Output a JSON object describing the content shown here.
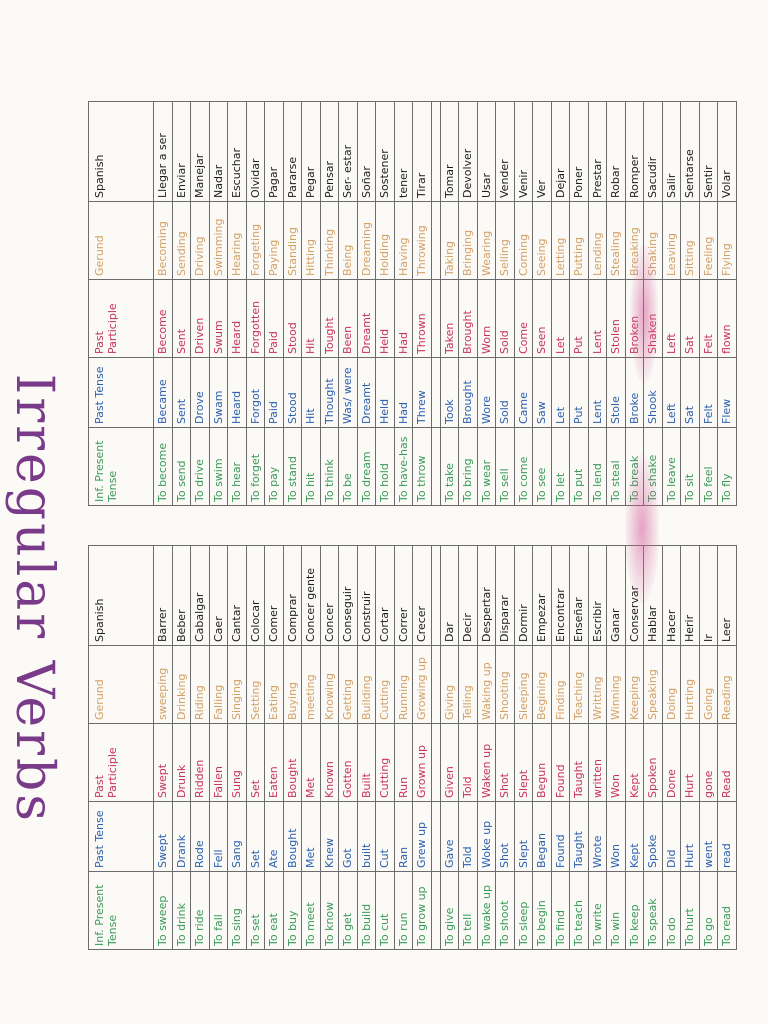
{
  "title": "Irregular Verbs",
  "left_table": {
    "headers": [
      "Inf. Present Tense",
      "Past Tense",
      "Past Participle",
      "Gerund",
      "Spanish"
    ],
    "rows": [
      [
        "To sweep",
        "Swept",
        "Swept",
        "sweeping",
        "Barrer"
      ],
      [
        "To drink",
        "Drank",
        "Drunk",
        "Drinking",
        "Beber"
      ],
      [
        "To ride",
        "Rode",
        "Ridden",
        "Riding",
        "Cabalgar"
      ],
      [
        "To fall",
        "Fell",
        "Fallen",
        "Falling",
        "Caer"
      ],
      [
        "To sing",
        "Sang",
        "Sung",
        "Singing",
        "Cantar"
      ],
      [
        "To set",
        "Set",
        "Set",
        "Setting",
        "Colocar"
      ],
      [
        "To eat",
        "Ate",
        "Eaten",
        "Eating",
        "Comer"
      ],
      [
        "To buy",
        "Bought",
        "Bought",
        "Buying",
        "Comprar"
      ],
      [
        "To meet",
        "Met",
        "Met",
        "meeting",
        "Concer gente"
      ],
      [
        "To know",
        "Knew",
        "Known",
        "Knowing",
        "Concer"
      ],
      [
        "To get",
        "Got",
        "Gotten",
        "Getting",
        "Conseguir"
      ],
      [
        "To build",
        "built",
        "Built",
        "Building",
        "Construir"
      ],
      [
        "To cut",
        "Cut",
        "Cutting",
        "Cutting",
        "Cortar"
      ],
      [
        "To run",
        "Ran",
        "Run",
        "Running",
        "Correr"
      ],
      [
        "To grow up",
        "Grew up",
        "Grown up",
        "Growing up",
        "Crecer"
      ],
      null,
      [
        "To give",
        "Gave",
        "Given",
        "Giving",
        "Dar"
      ],
      [
        "To tell",
        "Told",
        "Told",
        "Telling",
        "Decir"
      ],
      [
        "To wake up",
        "Woke up",
        "Waken up",
        "Waking up",
        "Despertar"
      ],
      [
        "To shoot",
        "Shot",
        "Shot",
        "Shooting",
        "Disparar"
      ],
      [
        "To sleep",
        "Slept",
        "Slept",
        "Sleeping",
        "Dormir"
      ],
      [
        "To begin",
        "Began",
        "Begun",
        "Begining",
        "Empezar"
      ],
      [
        "To find",
        "Found",
        "Found",
        "Finding",
        "Encontrar"
      ],
      [
        "To teach",
        "Taught",
        "Taught",
        "Teaching",
        "Enseñar"
      ],
      [
        "To write",
        "Wrote",
        "written",
        "Writting",
        "Escribir"
      ],
      [
        "To win",
        "Won",
        "Won",
        "Winning",
        "Ganar"
      ],
      [
        "To keep",
        "Kept",
        "Kept",
        "Keeping",
        "Conservar"
      ],
      [
        "To speak",
        "Spoke",
        "Spoken",
        "Speaking",
        "Hablar"
      ],
      [
        "To do",
        "Did",
        "Done",
        "Doing",
        "Hacer"
      ],
      [
        "To hurt",
        "Hurt",
        "Hurt",
        "Hurting",
        "Herir"
      ],
      [
        "To go",
        "went",
        "gone",
        "Going",
        "Ir"
      ],
      [
        "To read",
        "read",
        "Read",
        "Reading",
        "Leer"
      ]
    ]
  },
  "right_table": {
    "headers": [
      "Inf. Present Tense",
      "Past Tense",
      "Past Participle",
      "Gerund",
      "Spanish"
    ],
    "rows": [
      [
        "To become",
        "Became",
        "Become",
        "Becoming",
        "Llegar a ser"
      ],
      [
        "To send",
        "Sent",
        "Sent",
        "Sending",
        "Enviar"
      ],
      [
        "To drive",
        "Drove",
        "Driven",
        "Driving",
        "Manejar"
      ],
      [
        "To swim",
        "Swam",
        "Swum",
        "Swimming",
        "Nadar"
      ],
      [
        "To hear",
        "Heard",
        "Heard",
        "Hearing",
        "Escuchar"
      ],
      [
        "To forget",
        "Forgot",
        "Forgotten",
        "Forgeting",
        "Olvidar"
      ],
      [
        "To pay",
        "Paid",
        "Paid",
        "Paying",
        "Pagar"
      ],
      [
        "To stand",
        "Stood",
        "Stood",
        "Standing",
        "Pararse"
      ],
      [
        "To hit",
        "Hit",
        "Hit",
        "Hitting",
        "Pegar"
      ],
      [
        "To think",
        "Thought",
        "Tought",
        "Thinking",
        "Pensar"
      ],
      [
        "To be",
        "Was/ were",
        "Been",
        "Being",
        "Ser- estar"
      ],
      [
        "To dream",
        "Dreamt",
        "Dreamt",
        "Dreaming",
        "Soñar"
      ],
      [
        "To hold",
        "Held",
        "Held",
        "Holding",
        "Sostener"
      ],
      [
        "To have-has",
        "Had",
        "Had",
        "Having",
        "tener"
      ],
      [
        "To throw",
        "Threw",
        "Thrown",
        "Throwing",
        "Tirar"
      ],
      null,
      [
        "To take",
        "Took",
        "Taken",
        "Taking",
        "Tomar"
      ],
      [
        "To bring",
        "Brought",
        "Brought",
        "Bringing",
        "Devolver"
      ],
      [
        "To wear",
        "Wore",
        "Worn",
        "Wearing",
        "Usar"
      ],
      [
        "To sell",
        "Sold",
        "Sold",
        "Selling",
        "Vender"
      ],
      [
        "To come",
        "Came",
        "Come",
        "Coming",
        "Venir"
      ],
      [
        "To see",
        "Saw",
        "Seen",
        "Seeing",
        "Ver"
      ],
      [
        "To let",
        "Let",
        "Let",
        "Letting",
        "Dejar"
      ],
      [
        "To put",
        "Put",
        "Put",
        "Putting",
        "Poner"
      ],
      [
        "To lend",
        "Lent",
        "Lent",
        "Lending",
        "Prestar"
      ],
      [
        "To steal",
        "Stole",
        "Stolen",
        "Stealing",
        "Robar"
      ],
      [
        "To break",
        "Broke",
        "Broken",
        "Breaking",
        "Romper"
      ],
      [
        "To shake",
        "Shook",
        "Shaken",
        "Shaking",
        "Sacudir"
      ],
      [
        "To leave",
        "Left",
        "Left",
        "Leaving",
        "Salir"
      ],
      [
        "To sit",
        "Sat",
        "Sat",
        "Sitting",
        "Sentarse"
      ],
      [
        "To feel",
        "Felt",
        "Felt",
        "Feeling",
        "Sentir"
      ],
      [
        "To fly",
        "Flew",
        "flown",
        "Flying",
        "Volar"
      ]
    ]
  },
  "colors": {
    "infinitive": "#3a9a58",
    "past": "#2c5fae",
    "participle": "#c8335a",
    "gerund": "#d3a065",
    "spanish": "#1d1d1d",
    "title": "#7a3a8a"
  }
}
